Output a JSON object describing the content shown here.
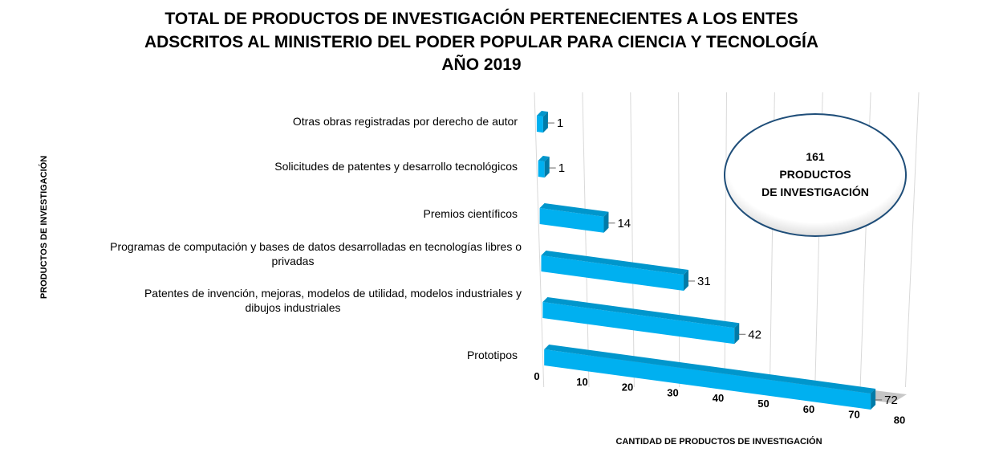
{
  "chart_data": {
    "type": "bar",
    "orientation": "horizontal",
    "title": [
      "TOTAL DE PRODUCTOS DE INVESTIGACIÓN PERTENECIENTES A LOS ENTES",
      "ADSCRITOS AL MINISTERIO DEL PODER POPULAR PARA CIENCIA Y TECNOLOGÍA",
      "AÑO 2019"
    ],
    "ylabel": "PRODUCTOS  DE INVESTIGACIÓN",
    "xlabel": "CANTIDAD DE PRODUCTOS DE INVESTIGACIÓN",
    "categories": [
      [
        "Otras obras registradas por derecho de autor"
      ],
      [
        "Solicitudes de patentes y desarrollo tecnológicos"
      ],
      [
        "Premios científicos"
      ],
      [
        "Programas de computación y bases de datos desarrolladas en tecnologías libres o",
        "privadas"
      ],
      [
        "Patentes de invención, mejoras, modelos de utilidad, modelos industriales y",
        "dibujos industriales"
      ],
      [
        "Prototipos"
      ]
    ],
    "values": [
      1,
      1,
      14,
      31,
      42,
      72
    ],
    "xlim": [
      0,
      80
    ],
    "xticks": [
      "0",
      "10",
      "20",
      "30",
      "40",
      "50",
      "60",
      "70",
      "80"
    ],
    "bar_color": "#00b0f0",
    "grid": true,
    "annotation": [
      "161",
      "PRODUCTOS",
      "DE INVESTIGACIÓN"
    ]
  }
}
